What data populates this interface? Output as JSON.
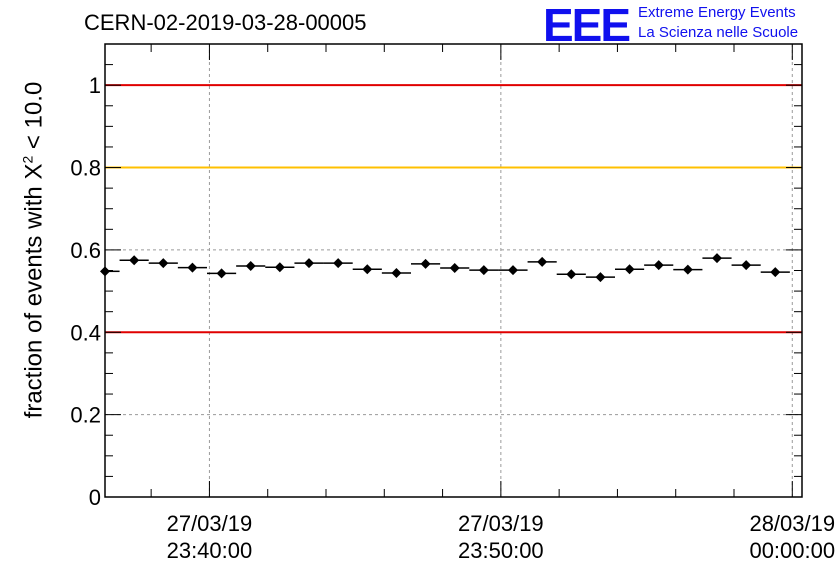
{
  "header": {
    "title": "CERN-02-2019-03-28-00005",
    "logo_text": "EEE",
    "logo_line1": "Extreme Energy Events",
    "logo_line2": "La Scienza nelle Scuole"
  },
  "chart_data": {
    "type": "scatter",
    "title": "CERN-02-2019-03-28-00005",
    "ylabel_prefix": "fraction of events with X",
    "ylabel_sup": "2",
    "ylabel_suffix": " < 10.0",
    "xlabel": "",
    "ylim": [
      0,
      1.1
    ],
    "yticks": [
      {
        "value": 0,
        "label": "0"
      },
      {
        "value": 0.2,
        "label": "0.2"
      },
      {
        "value": 0.4,
        "label": "0.4"
      },
      {
        "value": 0.6,
        "label": "0.6"
      },
      {
        "value": 0.8,
        "label": "0.8"
      },
      {
        "value": 1,
        "label": "1"
      }
    ],
    "xlim": [
      "27/03/19 23:36:25",
      "28/03/19 00:00:20"
    ],
    "xticks": [
      {
        "time": "27/03/19 23:40:00",
        "date": "27/03/19",
        "clock": "23:40:00"
      },
      {
        "time": "27/03/19 23:50:00",
        "date": "27/03/19",
        "clock": "23:50:00"
      },
      {
        "time": "28/03/19 00:00:00",
        "date": "28/03/19",
        "clock": "00:00:00"
      }
    ],
    "grid": true,
    "reference_lines": [
      {
        "y": 1.0,
        "color": "#e00000"
      },
      {
        "y": 0.8,
        "color": "#ffc000"
      },
      {
        "y": 0.4,
        "color": "#e00000"
      }
    ],
    "series": [
      {
        "color": "#000000",
        "points": [
          {
            "x": "27/03/19 23:36:25",
            "y": 0.548
          },
          {
            "x": "27/03/19 23:37:25",
            "y": 0.575
          },
          {
            "x": "27/03/19 23:38:25",
            "y": 0.568
          },
          {
            "x": "27/03/19 23:39:25",
            "y": 0.557
          },
          {
            "x": "27/03/19 23:40:25",
            "y": 0.543
          },
          {
            "x": "27/03/19 23:41:25",
            "y": 0.561
          },
          {
            "x": "27/03/19 23:42:25",
            "y": 0.558
          },
          {
            "x": "27/03/19 23:43:25",
            "y": 0.568
          },
          {
            "x": "27/03/19 23:44:25",
            "y": 0.568
          },
          {
            "x": "27/03/19 23:45:25",
            "y": 0.553
          },
          {
            "x": "27/03/19 23:46:25",
            "y": 0.544
          },
          {
            "x": "27/03/19 23:47:25",
            "y": 0.566
          },
          {
            "x": "27/03/19 23:48:25",
            "y": 0.556
          },
          {
            "x": "27/03/19 23:49:25",
            "y": 0.551
          },
          {
            "x": "27/03/19 23:50:25",
            "y": 0.551
          },
          {
            "x": "27/03/19 23:51:25",
            "y": 0.571
          },
          {
            "x": "27/03/19 23:52:25",
            "y": 0.541
          },
          {
            "x": "27/03/19 23:53:25",
            "y": 0.534
          },
          {
            "x": "27/03/19 23:54:25",
            "y": 0.553
          },
          {
            "x": "27/03/19 23:55:25",
            "y": 0.563
          },
          {
            "x": "27/03/19 23:56:25",
            "y": 0.552
          },
          {
            "x": "27/03/19 23:57:25",
            "y": 0.58
          },
          {
            "x": "27/03/19 23:58:25",
            "y": 0.563
          },
          {
            "x": "27/03/19 23:59:25",
            "y": 0.546
          }
        ]
      }
    ]
  }
}
